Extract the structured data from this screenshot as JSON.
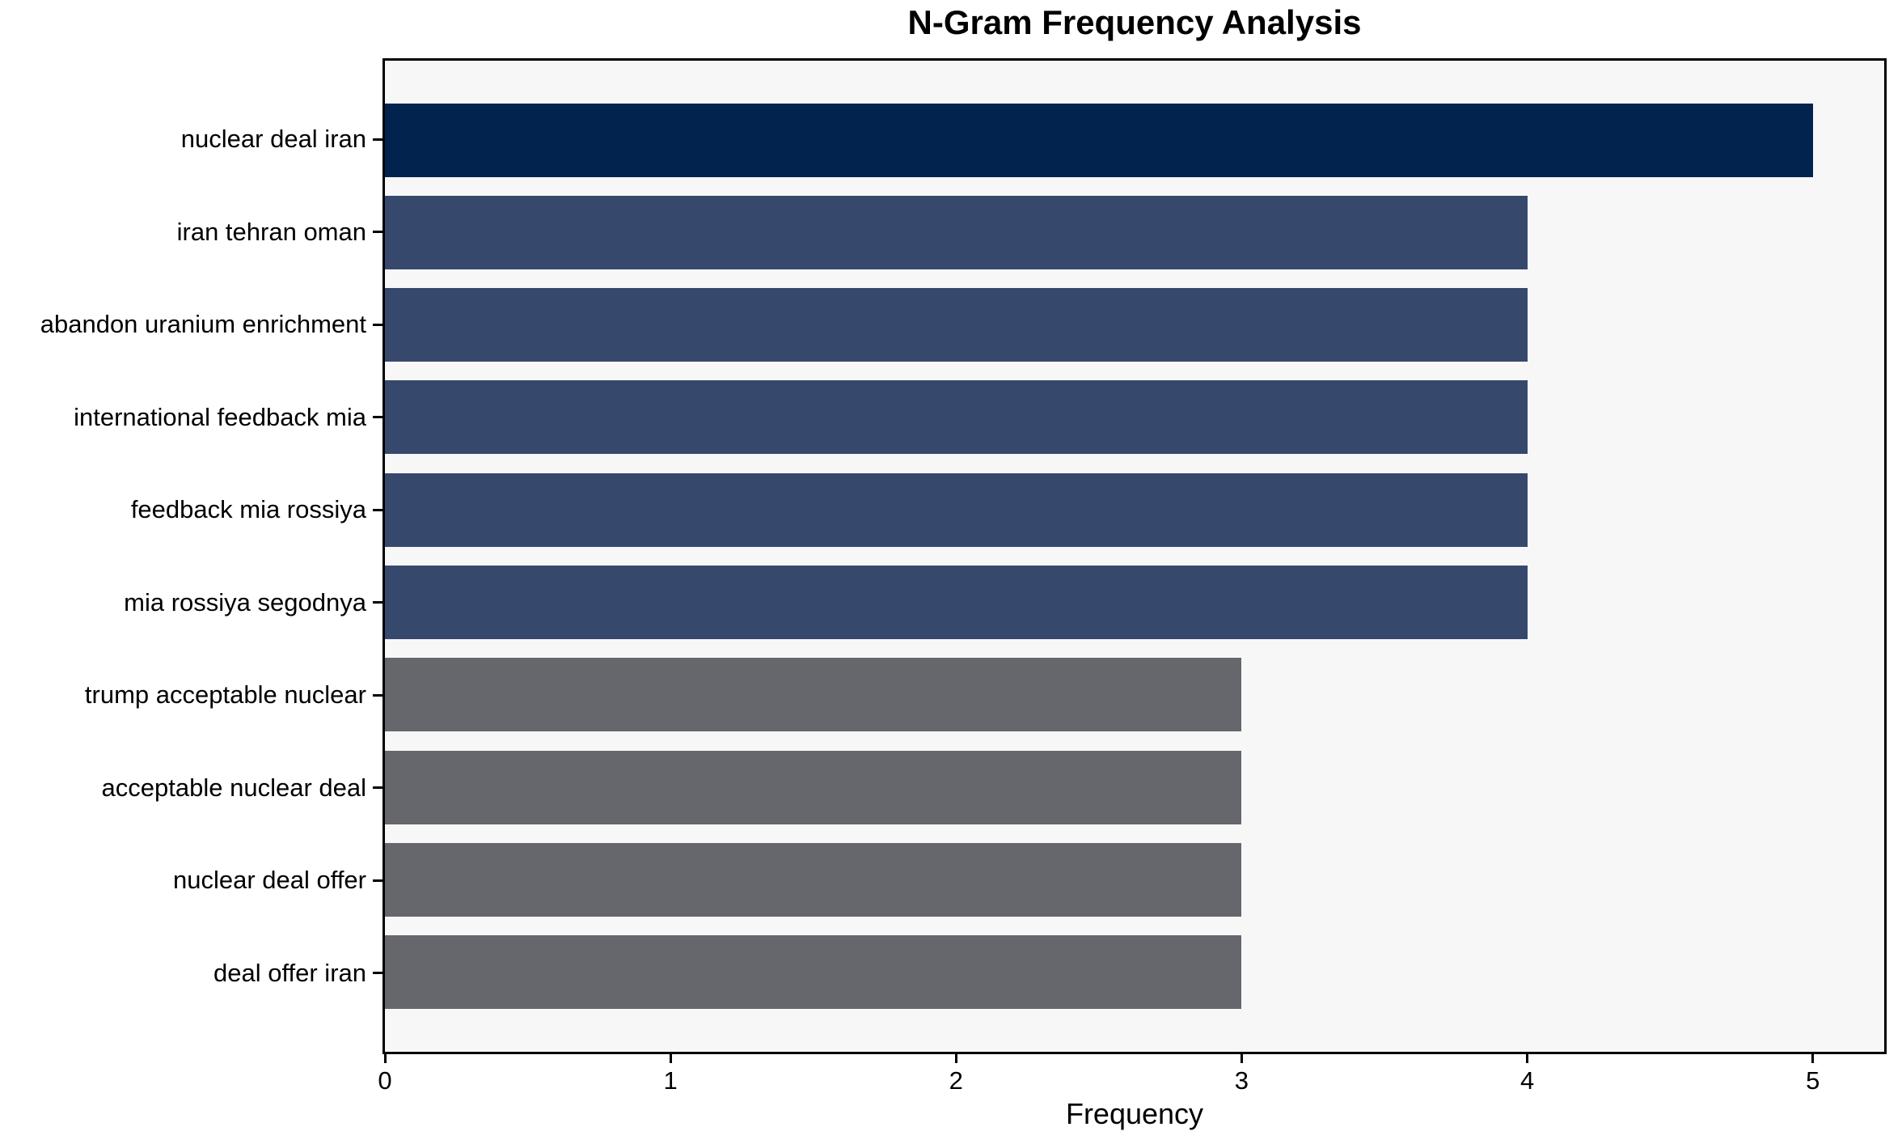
{
  "chart_data": {
    "type": "bar",
    "orientation": "horizontal",
    "title": "N-Gram Frequency Analysis",
    "xlabel": "Frequency",
    "ylabel": "",
    "categories": [
      "nuclear deal iran",
      "iran tehran oman",
      "abandon uranium enrichment",
      "international feedback mia",
      "feedback mia rossiya",
      "mia rossiya segodnya",
      "trump acceptable nuclear",
      "acceptable nuclear deal",
      "nuclear deal offer",
      "deal offer iran"
    ],
    "values": [
      5,
      4,
      4,
      4,
      4,
      4,
      3,
      3,
      3,
      3
    ],
    "xticks": [
      0,
      1,
      2,
      3,
      4,
      5
    ],
    "xlim": [
      0,
      5.25
    ],
    "grid": false,
    "legend_position": "none",
    "bar_colors": [
      "#02234e",
      "#37486d",
      "#37486d",
      "#37486d",
      "#37486d",
      "#37486d",
      "#65676d",
      "#65676d",
      "#65676d",
      "#65676d"
    ],
    "colors": {
      "plot_background": "#f7f7f8",
      "figure_background": "#ffffff",
      "spine": "#000000",
      "text": "#000000"
    }
  }
}
